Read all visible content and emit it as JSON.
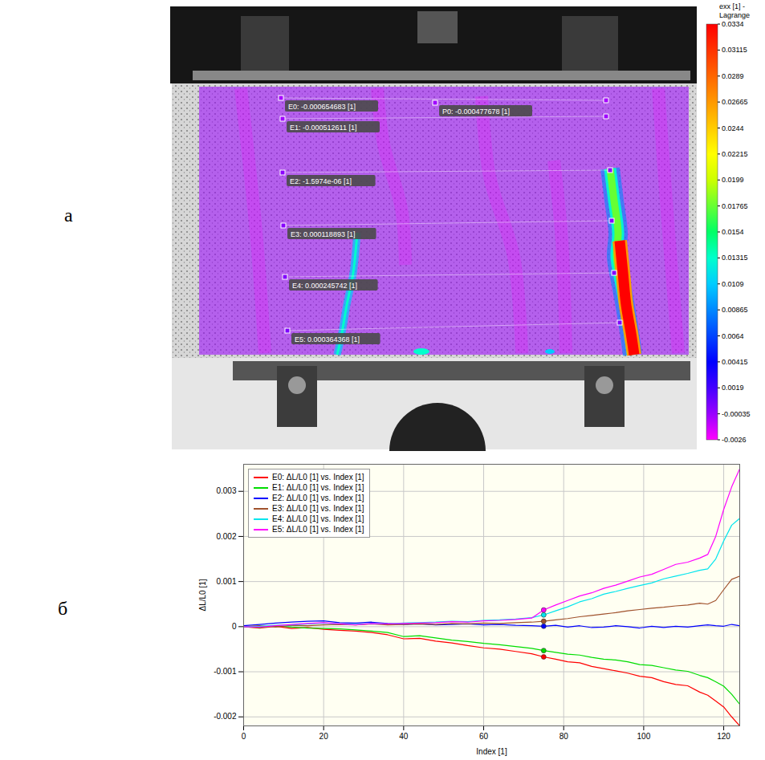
{
  "chart_data": [
    {
      "panel": "а",
      "type": "image",
      "colorbar": {
        "title": "exx [1] - Lagrange",
        "ticks": [
          0.0334,
          0.03115,
          0.0289,
          0.02665,
          0.0244,
          0.02215,
          0.0199,
          0.01765,
          0.0154,
          0.01315,
          0.0109,
          0.00865,
          0.0064,
          0.00415,
          0.0019,
          -0.00035,
          -0.0026
        ],
        "colors": [
          "#ff0000",
          "#ff3300",
          "#ff6600",
          "#ff9900",
          "#ffcc00",
          "#ffff00",
          "#ccff00",
          "#66ff33",
          "#00ff66",
          "#00ffcc",
          "#00ccff",
          "#0088ff",
          "#0044ff",
          "#0000ff",
          "#4400ff",
          "#9900ff",
          "#ff00ff"
        ]
      },
      "points": [
        {
          "value": -0.000654683,
          "label": "E0: -0.000654683 [1]"
        },
        {
          "value": -0.000512611,
          "label": "E1: -0.000512611 [1]"
        },
        {
          "value": -1.5974e-06,
          "label": "E2: -1.5974e-06 [1]"
        },
        {
          "value": 0.000118893,
          "label": "E3: 0.000118893 [1]"
        },
        {
          "value": 0.000245742,
          "label": "E4: 0.000245742 [1]"
        },
        {
          "value": 0.000364368,
          "label": "E5: 0.000364368 [1]"
        },
        {
          "value": -0.000477678,
          "label": "P0: -0.000477678 [1]"
        }
      ]
    },
    {
      "panel": "б",
      "type": "line",
      "x_label": "Index [1]",
      "y_label": "ΔL/L0 [1]",
      "x": [
        0,
        4,
        8,
        12,
        16,
        20,
        24,
        28,
        32,
        36,
        40,
        44,
        48,
        52,
        56,
        60,
        64,
        68,
        72,
        75,
        78,
        81,
        84,
        87,
        90,
        93,
        96,
        99,
        102,
        105,
        108,
        111,
        114,
        116,
        118,
        120,
        122,
        124
      ],
      "series": [
        {
          "name": "E0: ΔL/L0 [1] vs. Index [1]",
          "color": "#ff0000",
          "values": [
            0,
            -3e-05,
            1e-05,
            -4e-05,
            -2e-05,
            -6e-05,
            -8e-05,
            -0.0001,
            -0.00013,
            -0.00018,
            -0.00027,
            -0.00026,
            -0.00032,
            -0.00036,
            -0.00042,
            -0.00047,
            -0.0005,
            -0.00055,
            -0.0006,
            -0.00067,
            -0.00072,
            -0.00078,
            -0.0008,
            -0.00088,
            -0.00093,
            -0.00098,
            -0.00103,
            -0.0011,
            -0.00113,
            -0.00122,
            -0.00128,
            -0.00131,
            -0.00145,
            -0.00152,
            -0.00165,
            -0.00178,
            -0.002,
            -0.0022
          ]
        },
        {
          "name": "E1: ΔL/L0 [1] vs. Index [1]",
          "color": "#00dd00",
          "values": [
            0,
            -2e-05,
            2e-05,
            -1e-05,
            -3e-05,
            -4e-05,
            -5e-05,
            -7e-05,
            -0.0001,
            -0.00013,
            -0.00022,
            -0.0002,
            -0.00025,
            -0.0003,
            -0.00033,
            -0.00037,
            -0.0004,
            -0.00044,
            -0.00048,
            -0.00053,
            -0.00057,
            -0.00061,
            -0.00063,
            -0.00068,
            -0.00072,
            -0.00074,
            -0.00078,
            -0.00084,
            -0.00086,
            -0.00091,
            -0.00096,
            -0.00099,
            -0.00108,
            -0.00113,
            -0.00122,
            -0.00132,
            -0.0015,
            -0.00172
          ]
        },
        {
          "name": "E2: ΔL/L0 [1] vs. Index [1]",
          "color": "#0000ff",
          "values": [
            2e-05,
            5e-05,
            8e-05,
            0.0001,
            0.00012,
            0.00013,
            9e-05,
            8e-05,
            0.0001,
            7e-05,
            5e-05,
            6e-05,
            4e-05,
            5e-05,
            6e-05,
            4e-05,
            5e-05,
            3e-05,
            2e-05,
            1e-05,
            3e-05,
            -1e-05,
            2e-05,
            -2e-05,
            -1e-05,
            2e-05,
            0,
            -3e-05,
            1e-05,
            -2e-05,
            1e-05,
            -1e-05,
            2e-05,
            4e-05,
            2e-05,
            1e-05,
            5e-05,
            2e-05
          ]
        },
        {
          "name": "E3: ΔL/L0 [1] vs. Index [1]",
          "color": "#a0522d",
          "values": [
            0,
            2e-05,
            -1e-05,
            3e-05,
            2e-05,
            4e-05,
            5e-05,
            4e-05,
            6e-05,
            4e-05,
            5e-05,
            6e-05,
            5e-05,
            7e-05,
            6e-05,
            8e-05,
            7e-05,
            9e-05,
            0.0001,
            0.00012,
            0.00015,
            0.00018,
            0.00022,
            0.00025,
            0.00028,
            0.00031,
            0.00035,
            0.00038,
            0.00041,
            0.00043,
            0.00046,
            0.00048,
            0.00052,
            0.0005,
            0.00058,
            0.00082,
            0.00105,
            0.00112
          ]
        },
        {
          "name": "E4: ΔL/L0 [1] vs. Index [1]",
          "color": "#00e5ee",
          "values": [
            0,
            1e-05,
            3e-05,
            4e-05,
            6e-05,
            8e-05,
            6e-05,
            5e-05,
            7e-05,
            6e-05,
            8e-05,
            9e-05,
            0.0001,
            0.00012,
            0.00011,
            0.00014,
            0.00015,
            0.00017,
            0.0002,
            0.00026,
            0.00035,
            0.00044,
            0.00055,
            0.00062,
            0.00072,
            0.00078,
            0.00085,
            0.00091,
            0.00097,
            0.00106,
            0.00112,
            0.00118,
            0.00125,
            0.00128,
            0.0015,
            0.0019,
            0.00225,
            0.0024
          ]
        },
        {
          "name": "E5: ΔL/L0 [1] vs. Index [1]",
          "color": "#ff00ff",
          "values": [
            0,
            -1e-05,
            2e-05,
            5e-05,
            7e-05,
            9e-05,
            6e-05,
            4e-05,
            7e-05,
            6e-05,
            7e-05,
            8e-05,
            9e-05,
            0.00011,
            0.0001,
            0.00013,
            0.00014,
            0.00016,
            0.00019,
            0.00037,
            0.00048,
            0.00058,
            0.00068,
            0.00075,
            0.00085,
            0.00092,
            0.00101,
            0.0011,
            0.00116,
            0.00127,
            0.00138,
            0.00143,
            0.00152,
            0.0016,
            0.002,
            0.0026,
            0.0031,
            0.0035
          ]
        }
      ],
      "highlight_x": 75,
      "xlim": [
        0,
        124
      ],
      "xticks": [
        0,
        20,
        40,
        60,
        80,
        100,
        120
      ],
      "ylim": [
        -0.0022,
        0.0036
      ],
      "yticks": [
        -0.002,
        -0.001,
        0,
        0.001,
        0.002,
        0.003
      ],
      "grid": true,
      "legend": "top-left"
    }
  ]
}
